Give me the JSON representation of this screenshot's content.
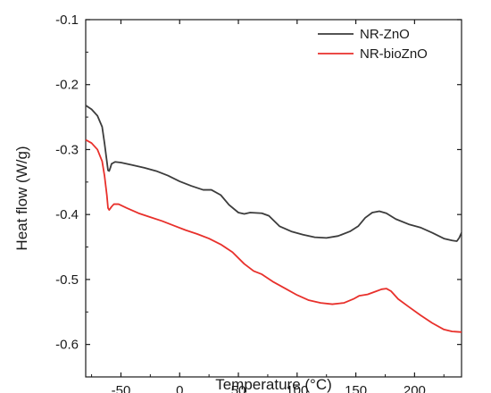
{
  "chart_data": {
    "type": "line",
    "title": "",
    "xlabel": "Temperature (°C)",
    "ylabel": "Heat flow (W/g)",
    "xlim": [
      -80,
      240
    ],
    "ylim": [
      -0.65,
      -0.1
    ],
    "xticks": [
      -50,
      0,
      50,
      100,
      150,
      200
    ],
    "yticks": [
      -0.1,
      -0.2,
      -0.3,
      -0.4,
      -0.5,
      -0.6
    ],
    "legend_position": "top-right",
    "grid": false,
    "series": [
      {
        "name": "NR-ZnO",
        "color": "#3c3c3c",
        "points": [
          [
            -80,
            -0.232
          ],
          [
            -75,
            -0.238
          ],
          [
            -70,
            -0.248
          ],
          [
            -66,
            -0.265
          ],
          [
            -64,
            -0.29
          ],
          [
            -62,
            -0.318
          ],
          [
            -61,
            -0.332
          ],
          [
            -60,
            -0.333
          ],
          [
            -59,
            -0.328
          ],
          [
            -58,
            -0.322
          ],
          [
            -55,
            -0.319
          ],
          [
            -50,
            -0.32
          ],
          [
            -40,
            -0.324
          ],
          [
            -30,
            -0.328
          ],
          [
            -20,
            -0.333
          ],
          [
            -10,
            -0.34
          ],
          [
            0,
            -0.349
          ],
          [
            10,
            -0.356
          ],
          [
            20,
            -0.362
          ],
          [
            27,
            -0.362
          ],
          [
            35,
            -0.37
          ],
          [
            42,
            -0.385
          ],
          [
            50,
            -0.397
          ],
          [
            55,
            -0.399
          ],
          [
            60,
            -0.397
          ],
          [
            70,
            -0.398
          ],
          [
            76,
            -0.402
          ],
          [
            85,
            -0.418
          ],
          [
            95,
            -0.426
          ],
          [
            105,
            -0.431
          ],
          [
            115,
            -0.435
          ],
          [
            125,
            -0.436
          ],
          [
            135,
            -0.433
          ],
          [
            145,
            -0.426
          ],
          [
            152,
            -0.418
          ],
          [
            158,
            -0.405
          ],
          [
            164,
            -0.397
          ],
          [
            170,
            -0.395
          ],
          [
            176,
            -0.398
          ],
          [
            184,
            -0.407
          ],
          [
            195,
            -0.415
          ],
          [
            205,
            -0.42
          ],
          [
            215,
            -0.428
          ],
          [
            225,
            -0.437
          ],
          [
            232,
            -0.44
          ],
          [
            236,
            -0.441
          ],
          [
            238,
            -0.436
          ],
          [
            240,
            -0.428
          ]
        ]
      },
      {
        "name": "NR-bioZnO",
        "color": "#e8302b",
        "points": [
          [
            -80,
            -0.285
          ],
          [
            -75,
            -0.29
          ],
          [
            -70,
            -0.3
          ],
          [
            -66,
            -0.318
          ],
          [
            -64,
            -0.34
          ],
          [
            -62,
            -0.37
          ],
          [
            -61,
            -0.39
          ],
          [
            -60,
            -0.393
          ],
          [
            -58,
            -0.388
          ],
          [
            -56,
            -0.384
          ],
          [
            -52,
            -0.384
          ],
          [
            -45,
            -0.39
          ],
          [
            -35,
            -0.398
          ],
          [
            -25,
            -0.404
          ],
          [
            -15,
            -0.41
          ],
          [
            -5,
            -0.417
          ],
          [
            5,
            -0.424
          ],
          [
            15,
            -0.43
          ],
          [
            25,
            -0.437
          ],
          [
            35,
            -0.446
          ],
          [
            45,
            -0.458
          ],
          [
            55,
            -0.476
          ],
          [
            63,
            -0.487
          ],
          [
            70,
            -0.492
          ],
          [
            80,
            -0.504
          ],
          [
            90,
            -0.514
          ],
          [
            100,
            -0.524
          ],
          [
            110,
            -0.532
          ],
          [
            120,
            -0.536
          ],
          [
            130,
            -0.538
          ],
          [
            140,
            -0.536
          ],
          [
            148,
            -0.53
          ],
          [
            153,
            -0.525
          ],
          [
            160,
            -0.523
          ],
          [
            166,
            -0.519
          ],
          [
            172,
            -0.515
          ],
          [
            176,
            -0.514
          ],
          [
            180,
            -0.518
          ],
          [
            186,
            -0.53
          ],
          [
            195,
            -0.542
          ],
          [
            205,
            -0.555
          ],
          [
            215,
            -0.567
          ],
          [
            225,
            -0.577
          ],
          [
            232,
            -0.58
          ],
          [
            240,
            -0.581
          ]
        ]
      }
    ]
  }
}
